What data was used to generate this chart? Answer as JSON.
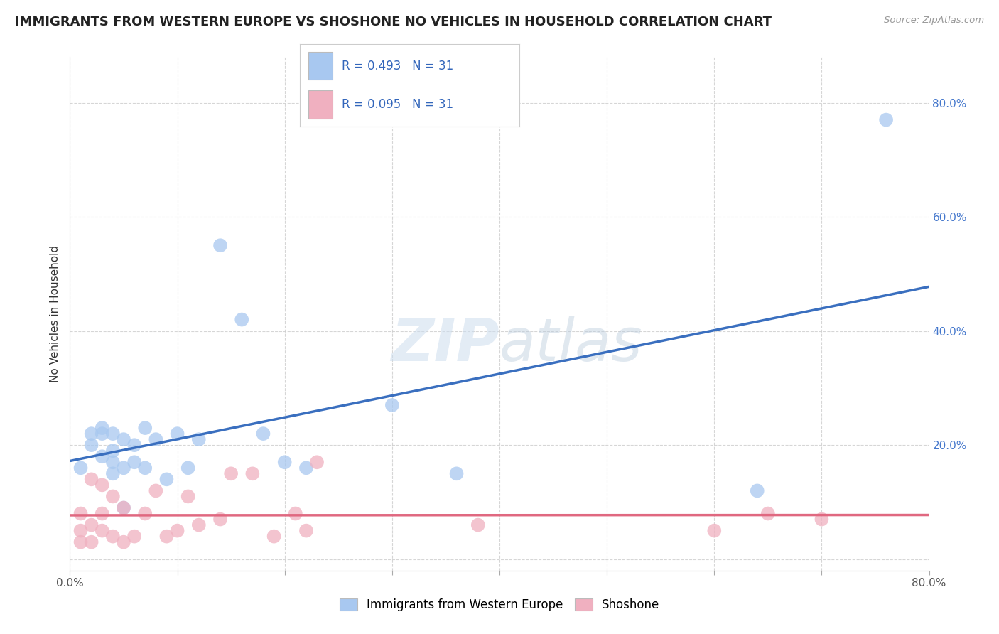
{
  "title": "IMMIGRANTS FROM WESTERN EUROPE VS SHOSHONE NO VEHICLES IN HOUSEHOLD CORRELATION CHART",
  "source": "Source: ZipAtlas.com",
  "ylabel": "No Vehicles in Household",
  "xlim": [
    0.0,
    0.8
  ],
  "ylim": [
    -0.02,
    0.88
  ],
  "x_ticks": [
    0.0,
    0.1,
    0.2,
    0.3,
    0.4,
    0.5,
    0.6,
    0.7,
    0.8
  ],
  "x_tick_labels": [
    "0.0%",
    "",
    "",
    "",
    "",
    "",
    "",
    "",
    "80.0%"
  ],
  "y_ticks": [
    0.0,
    0.2,
    0.4,
    0.6,
    0.8
  ],
  "y_tick_labels": [
    "",
    "20.0%",
    "40.0%",
    "60.0%",
    "80.0%"
  ],
  "R_blue": 0.493,
  "N_blue": 31,
  "R_pink": 0.095,
  "N_pink": 31,
  "blue_color": "#A8C8F0",
  "blue_line_color": "#3A6FBF",
  "pink_color": "#F0B0C0",
  "pink_line_color": "#E06880",
  "blue_scatter_x": [
    0.01,
    0.02,
    0.02,
    0.03,
    0.03,
    0.03,
    0.04,
    0.04,
    0.04,
    0.04,
    0.05,
    0.05,
    0.05,
    0.06,
    0.06,
    0.07,
    0.07,
    0.08,
    0.09,
    0.1,
    0.11,
    0.12,
    0.14,
    0.16,
    0.18,
    0.2,
    0.22,
    0.3,
    0.36,
    0.64,
    0.76
  ],
  "blue_scatter_y": [
    0.16,
    0.22,
    0.2,
    0.18,
    0.22,
    0.23,
    0.15,
    0.17,
    0.19,
    0.22,
    0.09,
    0.16,
    0.21,
    0.17,
    0.2,
    0.16,
    0.23,
    0.21,
    0.14,
    0.22,
    0.16,
    0.21,
    0.55,
    0.42,
    0.22,
    0.17,
    0.16,
    0.27,
    0.15,
    0.12,
    0.77
  ],
  "pink_scatter_x": [
    0.01,
    0.01,
    0.01,
    0.02,
    0.02,
    0.02,
    0.03,
    0.03,
    0.03,
    0.04,
    0.04,
    0.05,
    0.05,
    0.06,
    0.07,
    0.08,
    0.09,
    0.1,
    0.11,
    0.12,
    0.14,
    0.15,
    0.17,
    0.19,
    0.21,
    0.22,
    0.23,
    0.38,
    0.6,
    0.65,
    0.7
  ],
  "pink_scatter_y": [
    0.03,
    0.05,
    0.08,
    0.03,
    0.06,
    0.14,
    0.05,
    0.08,
    0.13,
    0.04,
    0.11,
    0.03,
    0.09,
    0.04,
    0.08,
    0.12,
    0.04,
    0.05,
    0.11,
    0.06,
    0.07,
    0.15,
    0.15,
    0.04,
    0.08,
    0.05,
    0.17,
    0.06,
    0.05,
    0.08,
    0.07
  ],
  "watermark_zip": "ZIP",
  "watermark_atlas": "atlas",
  "legend_blue_label": "Immigrants from Western Europe",
  "legend_pink_label": "Shoshone",
  "background_color": "#FFFFFF",
  "grid_color": "#CCCCCC",
  "title_fontsize": 13,
  "axis_label_fontsize": 11,
  "tick_fontsize": 11,
  "legend_fontsize": 13
}
